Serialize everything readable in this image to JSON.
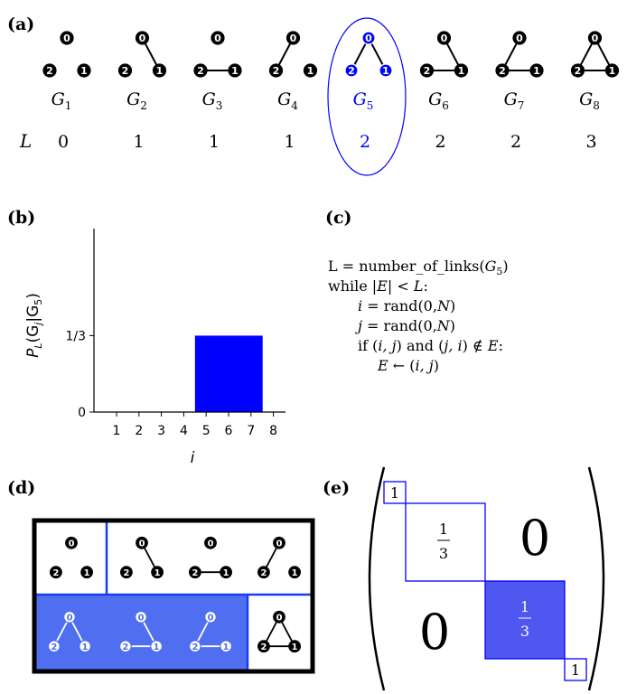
{
  "panels": {
    "a": {
      "label": "(a)",
      "node_labels": [
        "0",
        "1",
        "2"
      ],
      "graphs": [
        {
          "label": "G1",
          "sub": "1",
          "edges": [],
          "L": "0",
          "highlight": false
        },
        {
          "label": "G2",
          "sub": "2",
          "edges": [
            [
              0,
              1
            ]
          ],
          "L": "1",
          "highlight": false
        },
        {
          "label": "G3",
          "sub": "3",
          "edges": [
            [
              2,
              1
            ]
          ],
          "L": "1",
          "highlight": false
        },
        {
          "label": "G4",
          "sub": "4",
          "edges": [
            [
              0,
              2
            ]
          ],
          "L": "1",
          "highlight": false
        },
        {
          "label": "G5",
          "sub": "5",
          "edges": [
            [
              0,
              1
            ],
            [
              0,
              2
            ]
          ],
          "L": "2",
          "highlight": true
        },
        {
          "label": "G6",
          "sub": "6",
          "edges": [
            [
              0,
              1
            ],
            [
              2,
              1
            ]
          ],
          "L": "2",
          "highlight": false
        },
        {
          "label": "G7",
          "sub": "7",
          "edges": [
            [
              0,
              2
            ],
            [
              2,
              1
            ]
          ],
          "L": "2",
          "highlight": false
        },
        {
          "label": "G8",
          "sub": "8",
          "edges": [
            [
              0,
              1
            ],
            [
              0,
              2
            ],
            [
              2,
              1
            ]
          ],
          "L": "3",
          "highlight": false
        }
      ],
      "row_label": "L"
    },
    "b": {
      "label": "(b)",
      "ylabel_main": "P",
      "ylabel_sub": "L",
      "ylabel_rest": "(G",
      "ylabel_j": "j",
      "ylabel_bar": "|G",
      "ylabel_5": "5",
      "ylabel_end": ")",
      "xlabel": "i",
      "chart_data": {
        "type": "bar",
        "categories": [
          "1",
          "2",
          "3",
          "4",
          "5",
          "6",
          "7",
          "8"
        ],
        "values": [
          0,
          0,
          0,
          0,
          0.3333,
          0.3333,
          0.3333,
          0
        ],
        "yticks": [
          "0",
          "1/3"
        ],
        "ylim": [
          0,
          0.8
        ],
        "color": "#0000ff"
      }
    },
    "c": {
      "label": "(c)",
      "lines": [
        "L = number_of_links(G5)",
        "while |E| < L:",
        "i = rand(0,N)",
        "j = rand(0,N)",
        "if (i, j) and (j, i) ∉ E:",
        "E ← (i, j)"
      ]
    },
    "d": {
      "label": "(d)"
    },
    "e": {
      "label": "(e)",
      "entries": {
        "one_top": "1",
        "third_num": "1",
        "third_den": "3",
        "zero_top": "0",
        "zero_bottom": "0",
        "third2_num": "1",
        "third2_den": "3",
        "one_bottom": "1"
      },
      "fill_color": "#5566ee"
    }
  },
  "colors": {
    "highlight": "#0000ff",
    "fill_blue": "#4f6ef0",
    "black": "#000000"
  }
}
